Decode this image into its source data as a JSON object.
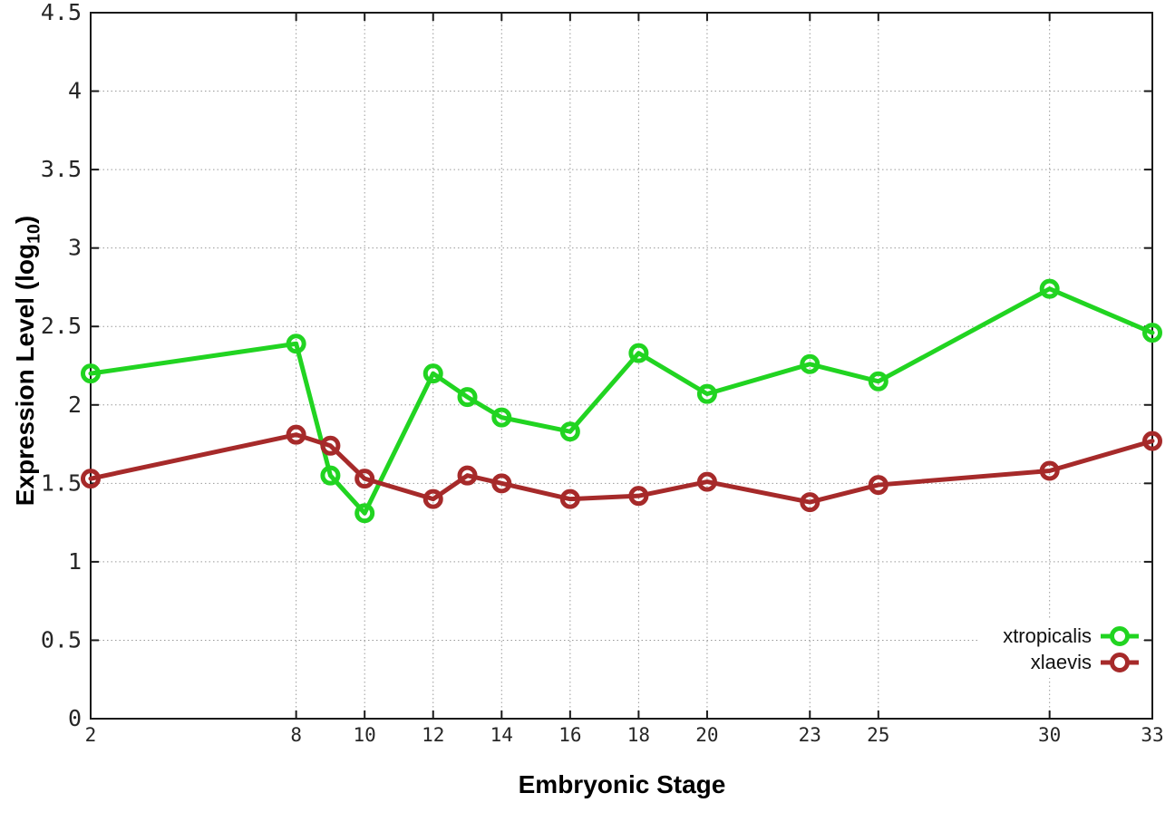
{
  "colors": {
    "background": "#ffffff",
    "axis": "#1a1a1a",
    "grid": "#9a9a9a",
    "tick_text": "#262626",
    "xtropicalis": "#21d421",
    "xlaevis": "#a62a2a"
  },
  "chart_data": {
    "type": "line",
    "title": "",
    "xlabel": "Embryonic Stage",
    "ylabel": "Expression Level (log10)",
    "ylabel_parts": {
      "main": "Expression Level (log",
      "sub": "10",
      "end": ")"
    },
    "xlim": [
      2,
      33
    ],
    "ylim": [
      0,
      4.5
    ],
    "grid": true,
    "legend_position": "bottom-right-inside",
    "x_ticks": [
      2,
      8,
      10,
      12,
      14,
      16,
      18,
      20,
      23,
      25,
      30,
      33
    ],
    "x_tick_labels": [
      "2",
      "8",
      "10",
      "12",
      "14",
      "16",
      "18",
      "20",
      "23",
      "25",
      "30",
      "33"
    ],
    "y_ticks": [
      0,
      0.5,
      1,
      1.5,
      2,
      2.5,
      3,
      3.5,
      4,
      4.5
    ],
    "y_tick_labels": [
      "0",
      "0.5",
      "1",
      "1.5",
      "2",
      "2.5",
      "3",
      "3.5",
      "4",
      "4.5"
    ],
    "x": [
      2,
      8,
      9,
      10,
      12,
      13,
      14,
      16,
      18,
      20,
      23,
      25,
      30,
      33
    ],
    "series": [
      {
        "name": "xtropicalis",
        "color": "#21d421",
        "marker": "open-circle",
        "values": [
          2.2,
          2.39,
          1.55,
          1.31,
          2.2,
          2.05,
          1.92,
          1.83,
          2.33,
          2.07,
          2.26,
          2.15,
          2.74,
          2.46
        ]
      },
      {
        "name": "xlaevis",
        "color": "#a62a2a",
        "marker": "open-circle",
        "values": [
          1.53,
          1.81,
          1.74,
          1.53,
          1.4,
          1.55,
          1.5,
          1.4,
          1.42,
          1.51,
          1.38,
          1.49,
          1.58,
          1.77
        ]
      }
    ]
  }
}
